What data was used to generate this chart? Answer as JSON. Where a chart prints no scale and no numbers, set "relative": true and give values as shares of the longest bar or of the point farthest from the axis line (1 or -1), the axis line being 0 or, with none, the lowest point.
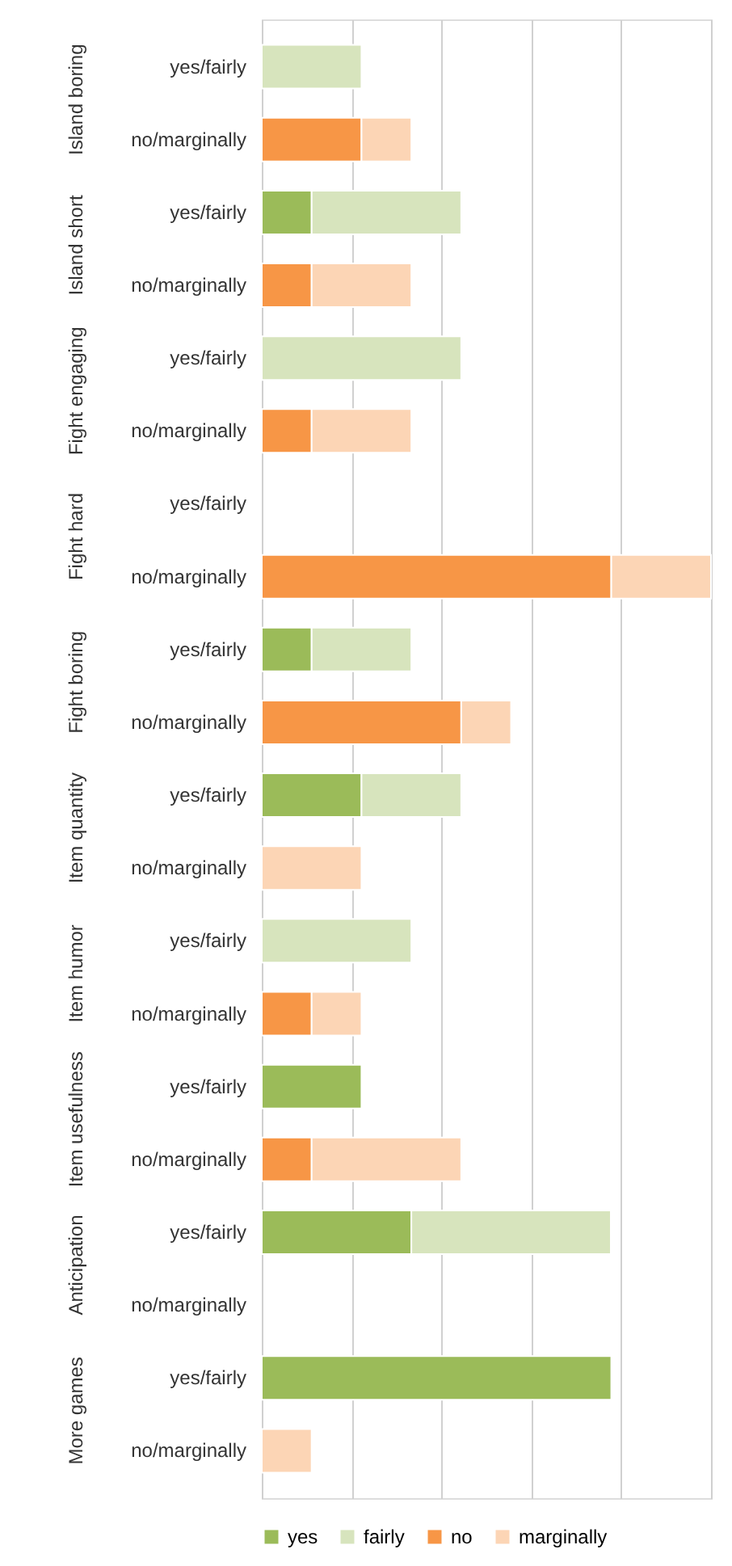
{
  "chart_data": {
    "type": "bar",
    "orientation": "horizontal",
    "stacked": true,
    "relative": true,
    "grid": "x",
    "legend": "bottom",
    "categories": [
      "yes/fairly",
      "no/marginally",
      "yes/fairly",
      "no/marginally",
      "yes/fairly",
      "no/marginally",
      "yes/fairly",
      "no/marginally",
      "yes/fairly",
      "no/marginally",
      "yes/fairly",
      "no/marginally",
      "yes/fairly",
      "no/marginally",
      "yes/fairly",
      "no/marginally",
      "yes/fairly",
      "no/marginally",
      "yes/fairly",
      "no/marginally"
    ],
    "annotations": [
      "Island boring",
      "Island short",
      "Fight engaging",
      "Fight hard",
      "Fight boring",
      "Item quantity",
      "Item humor",
      "Item usefulness",
      "Anticipation",
      "More games"
    ],
    "series": [
      {
        "name": "yes",
        "color": "#9bbb59",
        "values": [
          null,
          null,
          0.111,
          null,
          null,
          null,
          null,
          null,
          0.111,
          null,
          0.222,
          null,
          null,
          null,
          0.222,
          null,
          0.333,
          null,
          0.778,
          null
        ]
      },
      {
        "name": "fairly",
        "color": "#d7e4bd",
        "values": [
          0.222,
          null,
          0.333,
          null,
          0.444,
          null,
          null,
          null,
          0.222,
          null,
          0.222,
          null,
          0.333,
          null,
          null,
          null,
          0.444,
          null,
          null,
          null
        ]
      },
      {
        "name": "no",
        "color": "#f79646",
        "values": [
          null,
          0.222,
          null,
          0.111,
          null,
          0.111,
          null,
          0.778,
          null,
          0.444,
          null,
          null,
          null,
          0.111,
          null,
          0.111,
          null,
          null,
          null,
          null
        ]
      },
      {
        "name": "marginally",
        "color": "#fcd5b5",
        "values": [
          null,
          0.111,
          null,
          0.222,
          null,
          0.222,
          null,
          0.222,
          null,
          0.111,
          null,
          0.222,
          null,
          0.111,
          null,
          0.333,
          null,
          null,
          null,
          0.111
        ]
      }
    ]
  }
}
